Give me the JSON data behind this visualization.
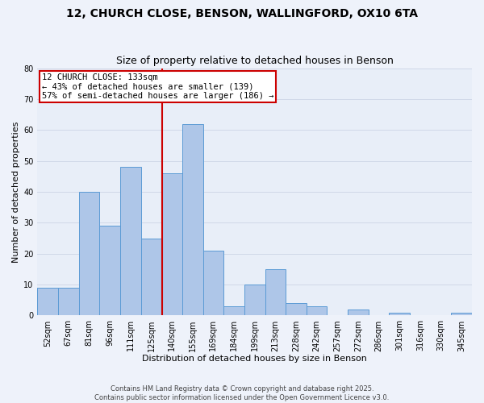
{
  "title1": "12, CHURCH CLOSE, BENSON, WALLINGFORD, OX10 6TA",
  "title2": "Size of property relative to detached houses in Benson",
  "xlabel": "Distribution of detached houses by size in Benson",
  "ylabel": "Number of detached properties",
  "categories": [
    "52sqm",
    "67sqm",
    "81sqm",
    "96sqm",
    "111sqm",
    "125sqm",
    "140sqm",
    "155sqm",
    "169sqm",
    "184sqm",
    "199sqm",
    "213sqm",
    "228sqm",
    "242sqm",
    "257sqm",
    "272sqm",
    "286sqm",
    "301sqm",
    "316sqm",
    "330sqm",
    "345sqm"
  ],
  "values": [
    9,
    9,
    40,
    29,
    48,
    25,
    46,
    62,
    21,
    3,
    10,
    15,
    4,
    3,
    0,
    2,
    0,
    1,
    0,
    0,
    1
  ],
  "bar_color": "#aec6e8",
  "bar_edge_color": "#5b9bd5",
  "annotation_title": "12 CHURCH CLOSE: 133sqm",
  "annotation_line1": "← 43% of detached houses are smaller (139)",
  "annotation_line2": "57% of semi-detached houses are larger (186) →",
  "annotation_box_color": "#ffffff",
  "annotation_box_edge": "#cc0000",
  "vline_color": "#cc0000",
  "ylim": [
    0,
    80
  ],
  "yticks": [
    0,
    10,
    20,
    30,
    40,
    50,
    60,
    70,
    80
  ],
  "grid_color": "#d0d8e8",
  "background_color": "#e8eef8",
  "fig_background_color": "#eef2fa",
  "footer": "Contains HM Land Registry data © Crown copyright and database right 2025.\nContains public sector information licensed under the Open Government Licence v3.0.",
  "title_fontsize": 10,
  "subtitle_fontsize": 9,
  "annotation_fontsize": 7.5,
  "axis_label_fontsize": 8,
  "tick_fontsize": 7,
  "footer_fontsize": 6
}
